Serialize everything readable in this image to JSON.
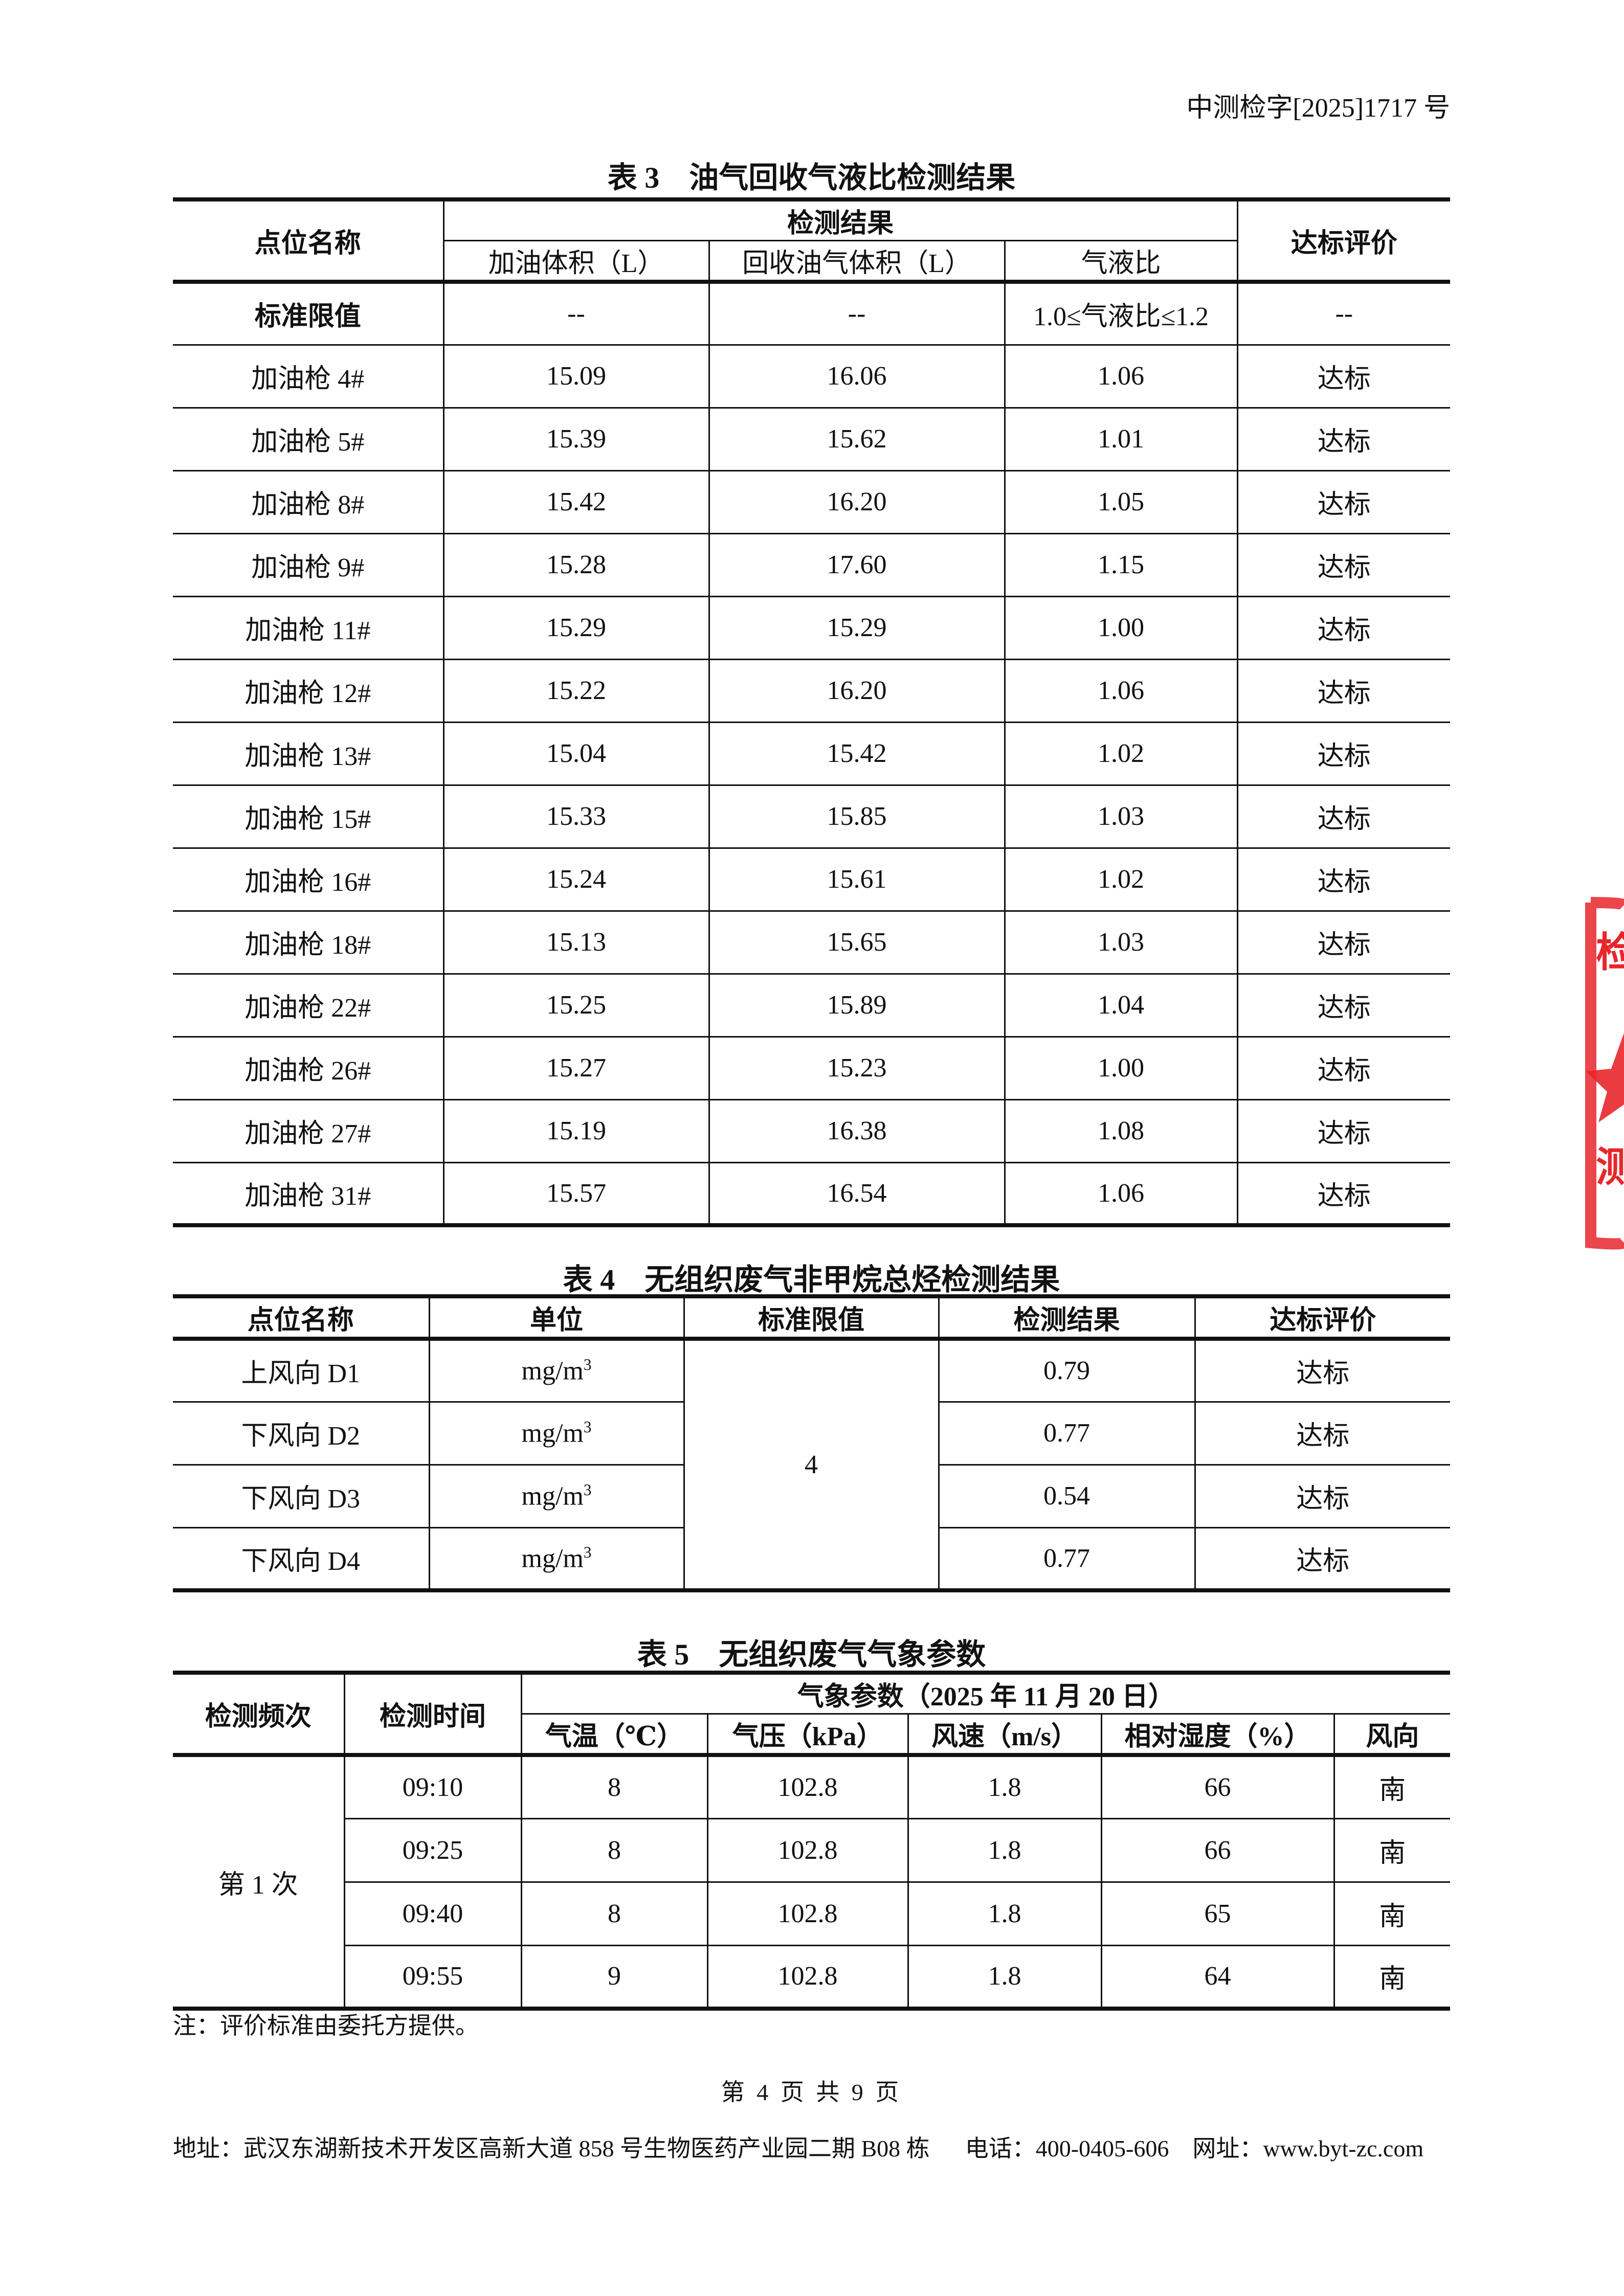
{
  "header": {
    "doc_number": "中测检字[2025]1717 号"
  },
  "table3": {
    "title": "表 3　油气回收气液比检测结果",
    "headers": {
      "point": "点位名称",
      "group": "检测结果",
      "fuel": "加油体积（L）",
      "vapor": "回收油气体积（L）",
      "ratio": "气液比",
      "eval": "达标评价"
    },
    "limit_row": [
      "标准限值",
      "--",
      "--",
      "1.0≤气液比≤1.2",
      "--"
    ],
    "rows": [
      [
        "加油枪 4#",
        "15.09",
        "16.06",
        "1.06",
        "达标"
      ],
      [
        "加油枪 5#",
        "15.39",
        "15.62",
        "1.01",
        "达标"
      ],
      [
        "加油枪 8#",
        "15.42",
        "16.20",
        "1.05",
        "达标"
      ],
      [
        "加油枪 9#",
        "15.28",
        "17.60",
        "1.15",
        "达标"
      ],
      [
        "加油枪 11#",
        "15.29",
        "15.29",
        "1.00",
        "达标"
      ],
      [
        "加油枪 12#",
        "15.22",
        "16.20",
        "1.06",
        "达标"
      ],
      [
        "加油枪 13#",
        "15.04",
        "15.42",
        "1.02",
        "达标"
      ],
      [
        "加油枪 15#",
        "15.33",
        "15.85",
        "1.03",
        "达标"
      ],
      [
        "加油枪 16#",
        "15.24",
        "15.61",
        "1.02",
        "达标"
      ],
      [
        "加油枪 18#",
        "15.13",
        "15.65",
        "1.03",
        "达标"
      ],
      [
        "加油枪 22#",
        "15.25",
        "15.89",
        "1.04",
        "达标"
      ],
      [
        "加油枪 26#",
        "15.27",
        "15.23",
        "1.00",
        "达标"
      ],
      [
        "加油枪 27#",
        "15.19",
        "16.38",
        "1.08",
        "达标"
      ],
      [
        "加油枪 31#",
        "15.57",
        "16.54",
        "1.06",
        "达标"
      ]
    ]
  },
  "table4": {
    "title": "表 4　无组织废气非甲烷总烃检测结果",
    "headers": [
      "点位名称",
      "单位",
      "标准限值",
      "检测结果",
      "达标评价"
    ],
    "unit_base": "mg/m",
    "unit_exp": "3",
    "limit": "4",
    "rows": [
      [
        "上风向 D1",
        "0.79",
        "达标"
      ],
      [
        "下风向 D2",
        "0.77",
        "达标"
      ],
      [
        "下风向 D3",
        "0.54",
        "达标"
      ],
      [
        "下风向 D4",
        "0.77",
        "达标"
      ]
    ]
  },
  "table5": {
    "title": "表 5　无组织废气气象参数",
    "headers": {
      "freq": "检测频次",
      "time": "检测时间",
      "group": "气象参数（2025 年 11 月 20 日）",
      "sub": [
        "气温（℃）",
        "气压（kPa）",
        "风速（m/s）",
        "相对湿度（%）",
        "风向"
      ]
    },
    "freq": "第 1 次",
    "rows": [
      [
        "09:10",
        "8",
        "102.8",
        "1.8",
        "66",
        "南"
      ],
      [
        "09:25",
        "8",
        "102.8",
        "1.8",
        "66",
        "南"
      ],
      [
        "09:40",
        "8",
        "102.8",
        "1.8",
        "65",
        "南"
      ],
      [
        "09:55",
        "9",
        "102.8",
        "1.8",
        "64",
        "南"
      ]
    ]
  },
  "note": "注：评价标准由委托方提供。",
  "page_number": "第 4 页 共 9 页",
  "footer": {
    "address": "地址：武汉东湖新技术开发区高新大道 858 号生物医药产业园二期 B08 栋",
    "phone": "电话：400-0405-606",
    "website": "网址：www.byt-zc.com"
  },
  "stamp": {
    "color": "#e8262b",
    "icon": "red-seal-star"
  }
}
